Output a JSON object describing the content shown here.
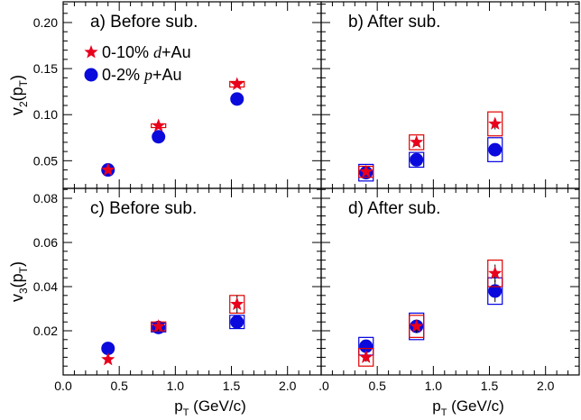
{
  "chart_data": {
    "type": "scatter",
    "colors": {
      "d_au": "#e8001c",
      "p_au": "#0a0adc",
      "d_au_box": "#e00000",
      "p_au_box": "#0000e0"
    },
    "legend": [
      {
        "name_prefix": "0-10% ",
        "name_italic": "d",
        "name_suffix": "+Au",
        "marker": "star"
      },
      {
        "name_prefix": "0-2% ",
        "name_italic": "p",
        "name_suffix": "+Au",
        "marker": "circle"
      }
    ],
    "xlabel": {
      "main": "p",
      "sub": "T",
      "rest": " (GeV/c)"
    },
    "xlim": [
      0,
      2.3
    ],
    "x_ticks_left": [
      "0.0",
      "0.5",
      "1.0",
      "1.5",
      "2.0"
    ],
    "x_ticks_right": [
      ".0",
      "0.5",
      "1.0",
      "1.5",
      "2.0"
    ],
    "rows": [
      {
        "ylabel": {
          "main": "v",
          "sub": "2",
          "rest": "(p",
          "sub2": "T",
          "end": ")"
        },
        "ylim": [
          0.02,
          0.2225
        ],
        "y_ticks": [
          0.05,
          0.1,
          0.15,
          0.2
        ],
        "y_tick_labels": [
          "0.05",
          "0.10",
          "0.15",
          "0.20"
        ]
      },
      {
        "ylabel": {
          "main": "v",
          "sub": "3",
          "rest": "(p",
          "sub2": "T",
          "end": ")"
        },
        "ylim": [
          0.0,
          0.0845
        ],
        "y_ticks": [
          0.02,
          0.04,
          0.06,
          0.08
        ],
        "y_tick_labels": [
          "0.02",
          "0.04",
          "0.06",
          "0.08"
        ]
      }
    ],
    "panels": [
      {
        "label": "a) Before sub.",
        "row": 0,
        "col": 0,
        "series": [
          {
            "name": "0-10% d+Au",
            "x": [
              0.4,
              0.85,
              1.55
            ],
            "y": [
              0.04,
              0.088,
              0.133
            ],
            "stat_err": [
              0.003,
              0.003,
              0.003
            ],
            "sys_err": [
              0.0,
              0.002,
              0.003
            ]
          },
          {
            "name": "0-2% p+Au",
            "x": [
              0.4,
              0.85,
              1.55
            ],
            "y": [
              0.04,
              0.076,
              0.117
            ],
            "stat_err": [
              0.004,
              0.004,
              0.004
            ],
            "sys_err": [
              0.0,
              0.0,
              0.0
            ]
          }
        ]
      },
      {
        "label": "b) After sub.",
        "row": 0,
        "col": 1,
        "series": [
          {
            "name": "0-10% d+Au",
            "x": [
              0.4,
              0.85,
              1.55
            ],
            "y": [
              0.038,
              0.07,
              0.09
            ],
            "stat_err": [
              0.004,
              0.004,
              0.006
            ],
            "sys_err": [
              0.006,
              0.008,
              0.013
            ]
          },
          {
            "name": "0-2% p+Au",
            "x": [
              0.4,
              0.85,
              1.55
            ],
            "y": [
              0.037,
              0.051,
              0.062
            ],
            "stat_err": [
              0.004,
              0.004,
              0.006
            ],
            "sys_err": [
              0.009,
              0.008,
              0.013
            ]
          }
        ]
      },
      {
        "label": "c) Before sub.",
        "row": 1,
        "col": 0,
        "series": [
          {
            "name": "0-10% d+Au",
            "x": [
              0.4,
              0.85,
              1.55
            ],
            "y": [
              0.007,
              0.022,
              0.032
            ],
            "stat_err": [
              0.001,
              0.002,
              0.004
            ],
            "sys_err": [
              0.0,
              0.002,
              0.004
            ]
          },
          {
            "name": "0-2% p+Au",
            "x": [
              0.4,
              0.85,
              1.55
            ],
            "y": [
              0.012,
              0.0215,
              0.024
            ],
            "stat_err": [
              0.0015,
              0.002,
              0.003
            ],
            "sys_err": [
              0.0,
              0.002,
              0.003
            ]
          }
        ]
      },
      {
        "label": "d) After sub.",
        "row": 1,
        "col": 1,
        "series": [
          {
            "name": "0-10% d+Au",
            "x": [
              0.4,
              0.85,
              1.55
            ],
            "y": [
              0.008,
              0.022,
              0.046
            ],
            "stat_err": [
              0.002,
              0.003,
              0.004
            ],
            "sys_err": [
              0.004,
              0.005,
              0.006
            ]
          },
          {
            "name": "0-2% p+Au",
            "x": [
              0.4,
              0.85,
              1.55
            ],
            "y": [
              0.013,
              0.022,
              0.038
            ],
            "stat_err": [
              0.002,
              0.003,
              0.005
            ],
            "sys_err": [
              0.004,
              0.006,
              0.006
            ]
          }
        ]
      }
    ]
  }
}
